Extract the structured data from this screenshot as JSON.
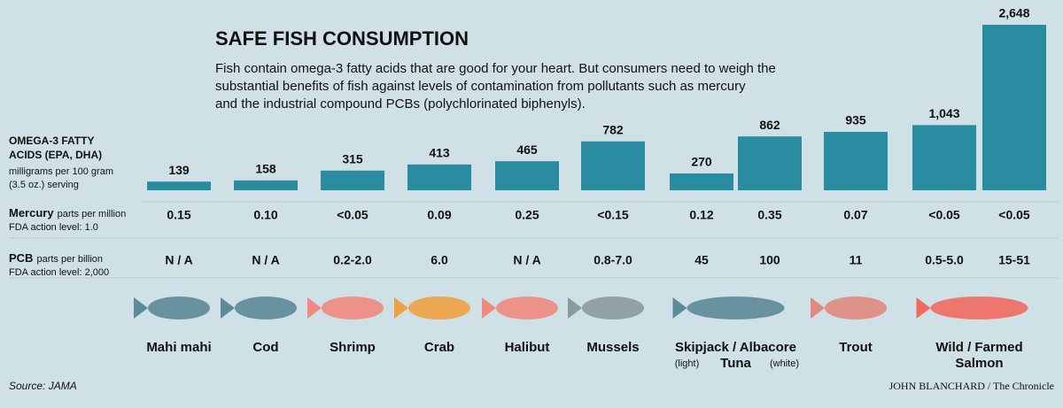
{
  "chart_data": {
    "type": "bar",
    "title": "SAFE FISH CONSUMPTION",
    "description": [
      "Fish contain omega-3 fatty acids that are good for your heart. But consumers need to weigh the",
      "substantial benefits of fish against levels of contamination from pollutants such as mercury",
      "and the industrial compound PCBs (polychlorinated biphenyls)."
    ],
    "value_title": [
      "OMEGA-3 FATTY",
      "ACIDS (EPA, DHA)"
    ],
    "value_note": [
      "milligrams per 100 gram",
      "(3.5 oz.) serving"
    ],
    "values": [
      139,
      158,
      315,
      413,
      465,
      782,
      270,
      862,
      935,
      1043,
      2648
    ],
    "value_labels": [
      "139",
      "158",
      "315",
      "413",
      "465",
      "782",
      "270",
      "862",
      "935",
      "1,043",
      "2,648"
    ],
    "color": "#2a8ca1",
    "rows": [
      {
        "label": "Mercury",
        "unit": "parts per million",
        "note": "FDA action level: 1.0",
        "values": [
          "0.15",
          "0.10",
          "<0.05",
          "0.09",
          "0.25",
          "<0.15",
          "0.12",
          "0.35",
          "0.07",
          "<0.05",
          "<0.05"
        ]
      },
      {
        "label": "PCB",
        "unit": "parts per billion",
        "note": "FDA action level: 2,000",
        "values": [
          "N / A",
          "N / A",
          "0.2-2.0",
          "6.0",
          "N / A",
          "0.8-7.0",
          "45",
          "100",
          "11",
          "0.5-5.0",
          "15-51"
        ]
      }
    ],
    "groups": [
      {
        "name": [
          "Mahi mahi"
        ]
      },
      {
        "name": [
          "Cod"
        ]
      },
      {
        "name": [
          "Shrimp"
        ]
      },
      {
        "name": [
          "Crab"
        ]
      },
      {
        "name": [
          "Halibut"
        ]
      },
      {
        "name": [
          "Mussels"
        ]
      },
      {
        "name": [
          "Skipjack / Albacore",
          "Tuna"
        ],
        "notes": [
          "(light)",
          "(white)"
        ]
      },
      {
        "name": [
          "Trout"
        ]
      },
      {
        "name": [
          "Wild / Farmed",
          "Salmon"
        ]
      }
    ],
    "source": "Source: JAMA",
    "credit": "JOHN BLANCHARD / The Chronicle"
  }
}
